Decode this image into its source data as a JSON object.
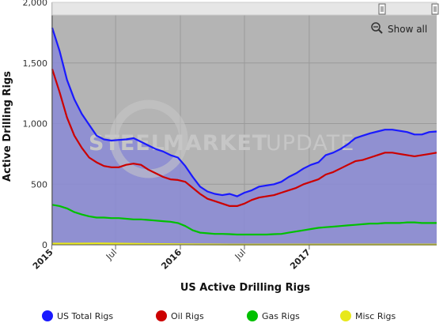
{
  "chart_data": {
    "type": "area",
    "title": "",
    "xlabel": "US Active Drilling Rigs",
    "ylabel": "Active Drilling Rigs",
    "ylim": [
      0,
      2000
    ],
    "yticks": [
      0,
      500,
      1000,
      1500,
      2000
    ],
    "ytick_labels": [
      "0",
      "500",
      "1,000",
      "1,500",
      "2,000"
    ],
    "xlim": [
      "2015-01-02",
      "2017-12-29"
    ],
    "xticks": [
      {
        "date": "2015-01-01",
        "label": "2015",
        "major": true
      },
      {
        "date": "2015-07-01",
        "label": "Jul",
        "major": false
      },
      {
        "date": "2016-01-01",
        "label": "2016",
        "major": true
      },
      {
        "date": "2016-07-01",
        "label": "Jul",
        "major": false
      },
      {
        "date": "2017-01-01",
        "label": "2017",
        "major": true
      }
    ],
    "grid": true,
    "legend_position": "bottom",
    "series": [
      {
        "name": "US Total Rigs",
        "color": "#1a1aff",
        "x": [
          "2015-01-02",
          "2015-01-23",
          "2015-02-13",
          "2015-03-06",
          "2015-03-27",
          "2015-04-17",
          "2015-05-08",
          "2015-05-29",
          "2015-06-19",
          "2015-07-10",
          "2015-07-31",
          "2015-08-21",
          "2015-09-11",
          "2015-10-02",
          "2015-10-23",
          "2015-11-13",
          "2015-12-04",
          "2015-12-25",
          "2016-01-15",
          "2016-02-05",
          "2016-02-26",
          "2016-03-18",
          "2016-04-08",
          "2016-04-29",
          "2016-05-20",
          "2016-06-10",
          "2016-07-01",
          "2016-07-22",
          "2016-08-12",
          "2016-09-02",
          "2016-09-23",
          "2016-10-14",
          "2016-11-04",
          "2016-11-25",
          "2016-12-16",
          "2017-01-06",
          "2017-01-27",
          "2017-02-17",
          "2017-03-10",
          "2017-03-31",
          "2017-04-21",
          "2017-05-12",
          "2017-06-02",
          "2017-06-23",
          "2017-07-14",
          "2017-08-04",
          "2017-08-25",
          "2017-09-15",
          "2017-10-06",
          "2017-10-27",
          "2017-11-17",
          "2017-12-08",
          "2017-12-29"
        ],
        "values": [
          1790,
          1600,
          1360,
          1200,
          1080,
          990,
          900,
          870,
          860,
          865,
          870,
          880,
          850,
          820,
          790,
          770,
          740,
          720,
          650,
          560,
          480,
          440,
          420,
          410,
          420,
          400,
          430,
          450,
          480,
          490,
          500,
          520,
          560,
          590,
          630,
          660,
          680,
          740,
          760,
          790,
          830,
          880,
          900,
          920,
          935,
          950,
          950,
          940,
          930,
          910,
          910,
          930,
          935
        ]
      },
      {
        "name": "Oil Rigs",
        "color": "#cc0000",
        "x": [
          "2015-01-02",
          "2015-01-23",
          "2015-02-13",
          "2015-03-06",
          "2015-03-27",
          "2015-04-17",
          "2015-05-08",
          "2015-05-29",
          "2015-06-19",
          "2015-07-10",
          "2015-07-31",
          "2015-08-21",
          "2015-09-11",
          "2015-10-02",
          "2015-10-23",
          "2015-11-13",
          "2015-12-04",
          "2015-12-25",
          "2016-01-15",
          "2016-02-05",
          "2016-02-26",
          "2016-03-18",
          "2016-04-08",
          "2016-04-29",
          "2016-05-20",
          "2016-06-10",
          "2016-07-01",
          "2016-07-22",
          "2016-08-12",
          "2016-09-02",
          "2016-09-23",
          "2016-10-14",
          "2016-11-04",
          "2016-11-25",
          "2016-12-16",
          "2017-01-06",
          "2017-01-27",
          "2017-02-17",
          "2017-03-10",
          "2017-03-31",
          "2017-04-21",
          "2017-05-12",
          "2017-06-02",
          "2017-06-23",
          "2017-07-14",
          "2017-08-04",
          "2017-08-25",
          "2017-09-15",
          "2017-10-06",
          "2017-10-27",
          "2017-11-17",
          "2017-12-08",
          "2017-12-29"
        ],
        "values": [
          1450,
          1260,
          1050,
          900,
          800,
          720,
          680,
          650,
          640,
          640,
          660,
          670,
          660,
          620,
          590,
          560,
          540,
          535,
          520,
          470,
          420,
          380,
          360,
          340,
          320,
          320,
          340,
          370,
          390,
          400,
          410,
          430,
          450,
          470,
          500,
          520,
          540,
          580,
          600,
          630,
          660,
          690,
          700,
          720,
          740,
          760,
          760,
          750,
          740,
          730,
          740,
          750,
          760
        ]
      },
      {
        "name": "Gas Rigs",
        "color": "#00c000",
        "x": [
          "2015-01-02",
          "2015-01-23",
          "2015-02-13",
          "2015-03-06",
          "2015-03-27",
          "2015-04-17",
          "2015-05-08",
          "2015-05-29",
          "2015-06-19",
          "2015-07-10",
          "2015-07-31",
          "2015-08-21",
          "2015-09-11",
          "2015-10-02",
          "2015-10-23",
          "2015-11-13",
          "2015-12-04",
          "2015-12-25",
          "2016-01-15",
          "2016-02-05",
          "2016-02-26",
          "2016-03-18",
          "2016-04-08",
          "2016-04-29",
          "2016-05-20",
          "2016-06-10",
          "2016-07-01",
          "2016-07-22",
          "2016-08-12",
          "2016-09-02",
          "2016-09-23",
          "2016-10-14",
          "2016-11-04",
          "2016-11-25",
          "2016-12-16",
          "2017-01-06",
          "2017-01-27",
          "2017-02-17",
          "2017-03-10",
          "2017-03-31",
          "2017-04-21",
          "2017-05-12",
          "2017-06-02",
          "2017-06-23",
          "2017-07-14",
          "2017-08-04",
          "2017-08-25",
          "2017-09-15",
          "2017-10-06",
          "2017-10-27",
          "2017-11-17",
          "2017-12-08",
          "2017-12-29"
        ],
        "values": [
          330,
          320,
          300,
          270,
          250,
          235,
          225,
          225,
          220,
          220,
          215,
          210,
          210,
          205,
          200,
          195,
          190,
          180,
          155,
          120,
          100,
          95,
          90,
          90,
          88,
          85,
          85,
          85,
          85,
          85,
          88,
          90,
          100,
          110,
          120,
          130,
          140,
          145,
          150,
          155,
          160,
          165,
          170,
          175,
          175,
          180,
          180,
          180,
          185,
          185,
          180,
          180,
          180
        ]
      },
      {
        "name": "Misc Rigs",
        "color": "#e8e81a",
        "x": [
          "2015-01-02",
          "2015-03-06",
          "2015-05-08",
          "2015-07-10",
          "2015-09-11",
          "2015-11-13",
          "2016-01-15",
          "2016-03-18",
          "2016-05-20",
          "2016-07-22",
          "2016-09-23",
          "2016-11-25",
          "2017-01-27",
          "2017-03-31",
          "2017-06-02",
          "2017-08-04",
          "2017-10-06",
          "2017-12-08",
          "2017-12-29"
        ],
        "values": [
          10,
          10,
          12,
          10,
          8,
          6,
          4,
          3,
          2,
          2,
          2,
          2,
          2,
          2,
          2,
          2,
          2,
          2,
          2
        ]
      }
    ]
  },
  "watermark": {
    "part1": "STEEL",
    "part2": "MARKET",
    "part3": "UPDATE"
  },
  "controls": {
    "show_all_label": "Show all"
  }
}
